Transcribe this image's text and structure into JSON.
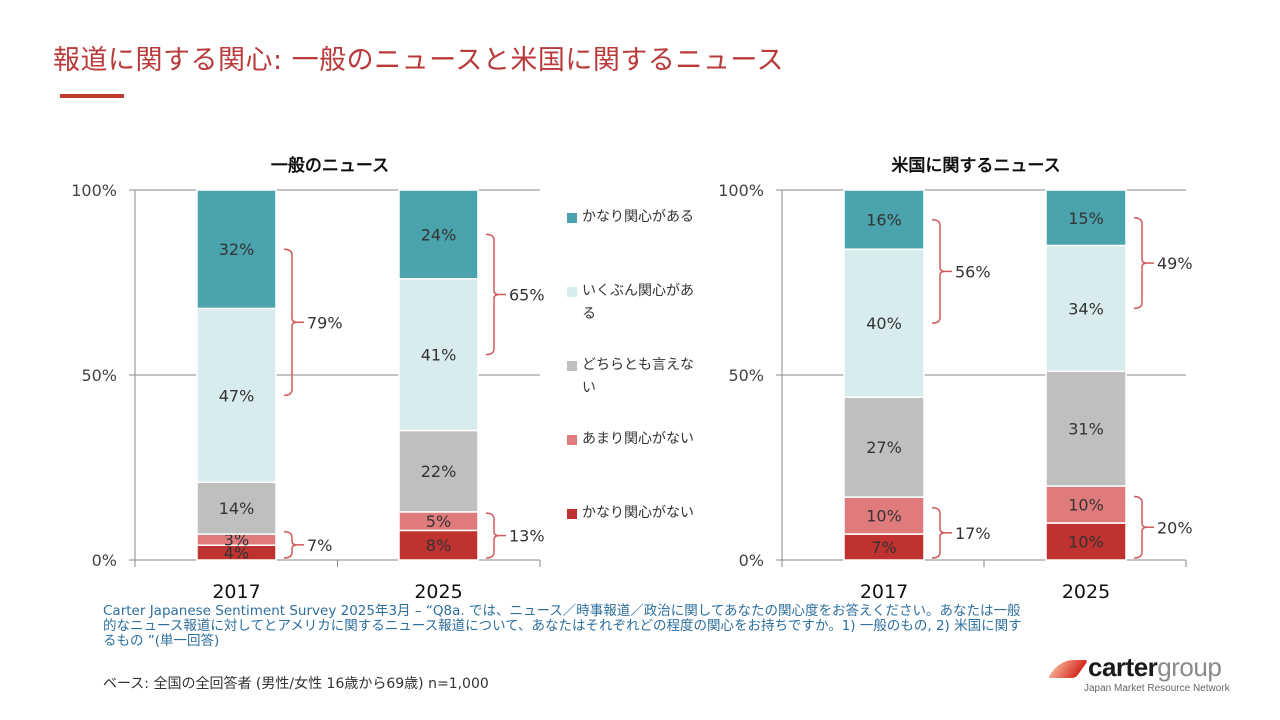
{
  "title": "報道に関する関心: 一般のニュースと米国に関するニュース",
  "legend": [
    {
      "label": "かなり関心がある",
      "color": "#4aa3ad"
    },
    {
      "label": "いくぶん関心がある",
      "color": "#d8ecee"
    },
    {
      "label": "どちらとも言えない",
      "color": "#bfbfbf"
    },
    {
      "label": "あまり関心がない",
      "color": "#e07b7b"
    },
    {
      "label": "かなり関心がない",
      "color": "#c0322f"
    }
  ],
  "chart_data": [
    {
      "type": "bar",
      "stacked": true,
      "title": "一般のニュース",
      "categories": [
        "2017",
        "2025"
      ],
      "ylim": [
        0,
        100
      ],
      "yticks": [
        "0%",
        "50%",
        "100%"
      ],
      "series": [
        {
          "name": "かなり関心がない",
          "values": [
            4,
            8
          ]
        },
        {
          "name": "あまり関心がない",
          "values": [
            3,
            5
          ]
        },
        {
          "name": "どちらとも言えない",
          "values": [
            14,
            22
          ]
        },
        {
          "name": "いくぶん関心がある",
          "values": [
            47,
            41
          ]
        },
        {
          "name": "かなり関心がある",
          "values": [
            32,
            24
          ]
        }
      ],
      "brackets": [
        {
          "category": "2017",
          "group": "interested",
          "label": "79%"
        },
        {
          "category": "2017",
          "group": "not_interested",
          "label": "7%"
        },
        {
          "category": "2025",
          "group": "interested",
          "label": "65%"
        },
        {
          "category": "2025",
          "group": "not_interested",
          "label": "13%"
        }
      ]
    },
    {
      "type": "bar",
      "stacked": true,
      "title": "米国に関するニュース",
      "categories": [
        "2017",
        "2025"
      ],
      "ylim": [
        0,
        100
      ],
      "yticks": [
        "0%",
        "50%",
        "100%"
      ],
      "series": [
        {
          "name": "かなり関心がない",
          "values": [
            7,
            10
          ]
        },
        {
          "name": "あまり関心がない",
          "values": [
            10,
            10
          ]
        },
        {
          "name": "どちらとも言えない",
          "values": [
            27,
            31
          ]
        },
        {
          "name": "いくぶん関心がある",
          "values": [
            40,
            34
          ]
        },
        {
          "name": "かなり関心がある",
          "values": [
            16,
            15
          ]
        }
      ],
      "brackets": [
        {
          "category": "2017",
          "group": "interested",
          "label": "56%"
        },
        {
          "category": "2017",
          "group": "not_interested",
          "label": "17%"
        },
        {
          "category": "2025",
          "group": "interested",
          "label": "49%"
        },
        {
          "category": "2025",
          "group": "not_interested",
          "label": "20%"
        }
      ]
    }
  ],
  "source": "Carter Japanese Sentiment Survey 2025年3月 – “Q8a. では、ニュース／時事報道／政治に関してあなたの関心度をお答えください。あなたは一般的なニュース報道に対してとアメリカに関するニュース報道について、あなたはそれぞれどの程度の関心をお持ちですか。1) 一般のもの, 2) 米国に関するもの ”(単一回答)",
  "base": "ベース: 全国の全回答者 (男性/女性 16歳から69歳) n=1,000",
  "logo": {
    "brand_bold": "carter",
    "brand_light": "group",
    "tagline": "Japan Market Resource Network"
  },
  "colors": {
    "accent": "#b93a3a",
    "bracket": "#d05a5a",
    "axis": "#888888",
    "source_text": "#2e6f9e"
  }
}
